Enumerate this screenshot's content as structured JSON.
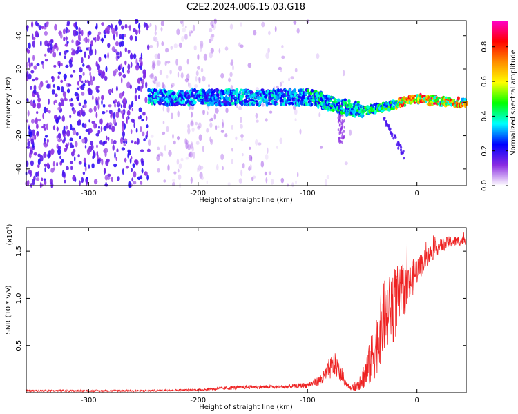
{
  "figure": {
    "title": "C2E2.2024.006.15.03.G18"
  },
  "chart_data": [
    {
      "type": "heatmap",
      "title": "C2E2.2024.006.15.03.G18",
      "xlabel": "Height of straight line (km)",
      "ylabel": "Frequency (Hz)",
      "xlim": [
        -357,
        45
      ],
      "ylim": [
        -50,
        49
      ],
      "xticks": [
        -300,
        -200,
        -100,
        0
      ],
      "yticks": [
        -40,
        -20,
        0,
        20,
        40
      ],
      "grid": false,
      "ridge": {
        "x": [
          -245,
          -200,
          -150,
          -120,
          -100,
          -80,
          -65,
          -50,
          -30,
          -15,
          0,
          15,
          30,
          45
        ],
        "y": [
          3,
          3,
          3,
          3,
          3,
          0,
          -3,
          -5,
          -3,
          0,
          2,
          1,
          0,
          0
        ],
        "onset_x": -245
      },
      "colorbar": {
        "label": "Normalized spectral amplitude",
        "range": [
          0,
          0.95
        ],
        "ticks": [
          0.0,
          0.2,
          0.4,
          0.6,
          0.8
        ],
        "tick_labels": [
          "0.0",
          "0.2",
          "0.4",
          "0.6",
          "0.8"
        ],
        "colors": [
          "#ffffff",
          "#8a2be2",
          "#0000ff",
          "#00ffff",
          "#00ff00",
          "#ffff00",
          "#ff8c00",
          "#ff0000",
          "#ff00cc"
        ]
      }
    },
    {
      "type": "line",
      "xlabel": "Height of straight line (km)",
      "ylabel": "SNR (10 * v/v)",
      "yscale_label": "(x10",
      "yscale_exp": "4",
      "yscale_close": ")",
      "xlim": [
        -357,
        45
      ],
      "ylim": [
        0,
        1.75
      ],
      "xticks": [
        -300,
        -200,
        -100,
        0
      ],
      "yticks": [
        0.5,
        1.0,
        1.5
      ],
      "ytick_labels": [
        "0.5",
        "1.0",
        "1.5"
      ],
      "grid": false,
      "series": [
        {
          "color": "#ee2222",
          "x": [
            -357,
            -300,
            -250,
            -200,
            -170,
            -150,
            -120,
            -100,
            -90,
            -85,
            -80,
            -75,
            -70,
            -65,
            -60,
            -55,
            -50,
            -45,
            -40,
            -35,
            -30,
            -25,
            -20,
            -15,
            -10,
            -5,
            0,
            10,
            20,
            30,
            45
          ],
          "y": [
            0.02,
            0.02,
            0.02,
            0.03,
            0.05,
            0.06,
            0.06,
            0.08,
            0.12,
            0.16,
            0.25,
            0.3,
            0.22,
            0.1,
            0.04,
            0.08,
            0.15,
            0.25,
            0.4,
            0.6,
            0.8,
            0.85,
            0.95,
            1.05,
            1.1,
            1.2,
            1.3,
            1.45,
            1.55,
            1.6,
            1.62
          ],
          "noise_amplitude": [
            0.01,
            0.01,
            0.01,
            0.01,
            0.02,
            0.02,
            0.02,
            0.03,
            0.05,
            0.08,
            0.12,
            0.12,
            0.1,
            0.04,
            0.02,
            0.06,
            0.12,
            0.2,
            0.3,
            0.35,
            0.4,
            0.4,
            0.4,
            0.3,
            0.25,
            0.2,
            0.15,
            0.1,
            0.08,
            0.06,
            0.05
          ]
        }
      ]
    }
  ]
}
